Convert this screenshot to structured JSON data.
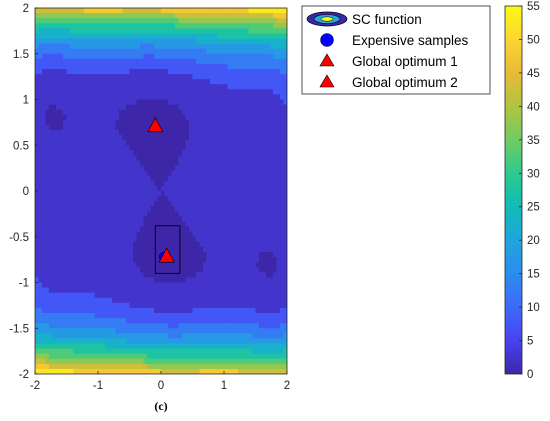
{
  "caption": "(c)",
  "chart_data": {
    "type": "contour",
    "xlim": [
      -2,
      2
    ],
    "ylim": [
      -2,
      2
    ],
    "x_ticks": [
      "-2",
      "-1",
      "0",
      "1",
      "2"
    ],
    "y_ticks": [
      "2",
      "1.5",
      "1",
      "0.5",
      "0",
      "-0.5",
      "-1",
      "-1.5",
      "-2"
    ],
    "colorbar": {
      "range": [
        0,
        55
      ],
      "ticks": [
        "55",
        "50",
        "45",
        "40",
        "35",
        "30",
        "25",
        "20",
        "15",
        "10",
        "5",
        "0"
      ],
      "colormap": [
        "#3e26a8",
        "#4743f0",
        "#3d6af9",
        "#2d8cee",
        "#1fa6dc",
        "#0fbcb6",
        "#2dc98f",
        "#6fcc62",
        "#b1c43f",
        "#e9ba36",
        "#fcd52f",
        "#f9fb15"
      ]
    },
    "legend": {
      "placement": "outside-top-right",
      "entries": [
        {
          "label": "SC function",
          "marker": "contour-ellipse"
        },
        {
          "label": "Expensive samples",
          "marker": "circle",
          "color": "#0000ff"
        },
        {
          "label": "Global optimum 1",
          "marker": "triangle",
          "color": "#ff0000"
        },
        {
          "label": "Global optimum 2",
          "marker": "triangle",
          "color": "#ff0000"
        }
      ]
    },
    "points": {
      "expensive_samples": [
        [
          0.05,
          -0.72
        ]
      ],
      "global_optimum_1": [
        [
          -0.0898,
          0.7126
        ]
      ],
      "global_optimum_2": [
        [
          0.0898,
          -0.7126
        ]
      ]
    },
    "annotation_box": {
      "x": [
        -0.09,
        0.3
      ],
      "y": [
        -0.9,
        -0.38
      ]
    }
  }
}
